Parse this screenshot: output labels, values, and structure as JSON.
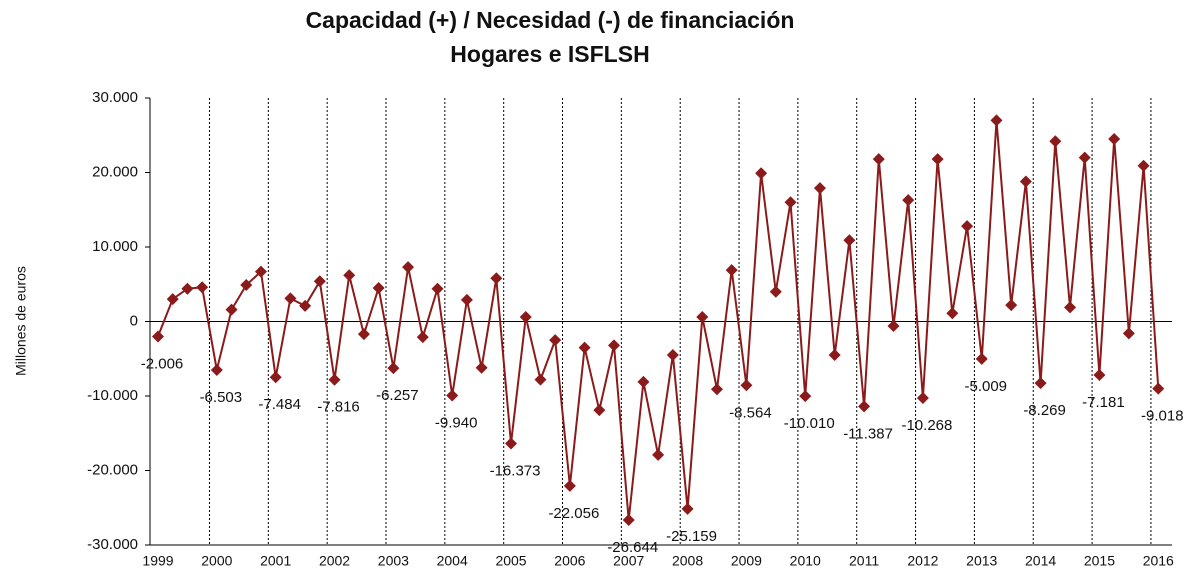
{
  "chart_data": {
    "type": "line",
    "title": "Capacidad (+) / Necesidad (-) de financiación",
    "subtitle": "Hogares e ISFLSH",
    "y_label": "Millones de euros",
    "color": "#8b1a1a",
    "categories": [
      "1999",
      null,
      null,
      null,
      "2000",
      null,
      null,
      null,
      "2001",
      null,
      null,
      null,
      "2002",
      null,
      null,
      null,
      "2003",
      null,
      null,
      null,
      "2004",
      null,
      null,
      null,
      "2005",
      null,
      null,
      null,
      "2006",
      null,
      null,
      null,
      "2007",
      null,
      null,
      null,
      "2008",
      null,
      null,
      null,
      "2009",
      null,
      null,
      null,
      "2010",
      null,
      null,
      null,
      "2011",
      null,
      null,
      null,
      "2012",
      null,
      null,
      null,
      "2013",
      null,
      null,
      null,
      "2014",
      null,
      null,
      null,
      "2015",
      null,
      null,
      null,
      "2016"
    ],
    "values": [
      -2006,
      3000,
      4400,
      4600,
      -6503,
      1600,
      4900,
      6700,
      -7484,
      3100,
      2100,
      5400,
      -7816,
      6200,
      -1700,
      4500,
      -6257,
      7300,
      -2100,
      4400,
      -9940,
      2900,
      -6200,
      5800,
      -16373,
      600,
      -7800,
      -2500,
      -22056,
      -3500,
      -11900,
      -3200,
      -26644,
      -8100,
      -17900,
      -4500,
      -25159,
      600,
      -9100,
      6900,
      -8564,
      19900,
      4000,
      16000,
      -10010,
      17900,
      -4500,
      10900,
      -11387,
      21800,
      -600,
      16300,
      -10268,
      21800,
      1100,
      12800,
      -5009,
      27000,
      2200,
      18800,
      -8269,
      24200,
      1900,
      22000,
      -7181,
      24500,
      -1600,
      20900,
      -9018
    ],
    "value_labels": [
      "-2.006",
      null,
      null,
      null,
      "-6.503",
      null,
      null,
      null,
      "-7.484",
      null,
      null,
      null,
      "-7.816",
      null,
      null,
      null,
      "-6.257",
      null,
      null,
      null,
      "-9.940",
      null,
      null,
      null,
      "-16.373",
      null,
      null,
      null,
      "-22.056",
      null,
      null,
      null,
      "-26.644",
      null,
      null,
      null,
      "-25.159",
      null,
      null,
      null,
      "-8.564",
      null,
      null,
      null,
      "-10.010",
      null,
      null,
      null,
      "-11.387",
      null,
      null,
      null,
      "-10.268",
      null,
      null,
      null,
      "-5.009",
      null,
      null,
      null,
      "-8.269",
      null,
      null,
      null,
      "-7.181",
      null,
      null,
      null,
      "-9.018"
    ],
    "ylim": [
      -30000,
      30000
    ],
    "yticks": [
      {
        "value": -30000,
        "label": "-30.000"
      },
      {
        "value": -20000,
        "label": "-20.000"
      },
      {
        "value": -10000,
        "label": "-10.000"
      },
      0,
      {
        "value": 10000,
        "label": "10.000"
      },
      {
        "value": 20000,
        "label": "20.000"
      },
      {
        "value": 30000,
        "label": "30.000"
      }
    ]
  }
}
